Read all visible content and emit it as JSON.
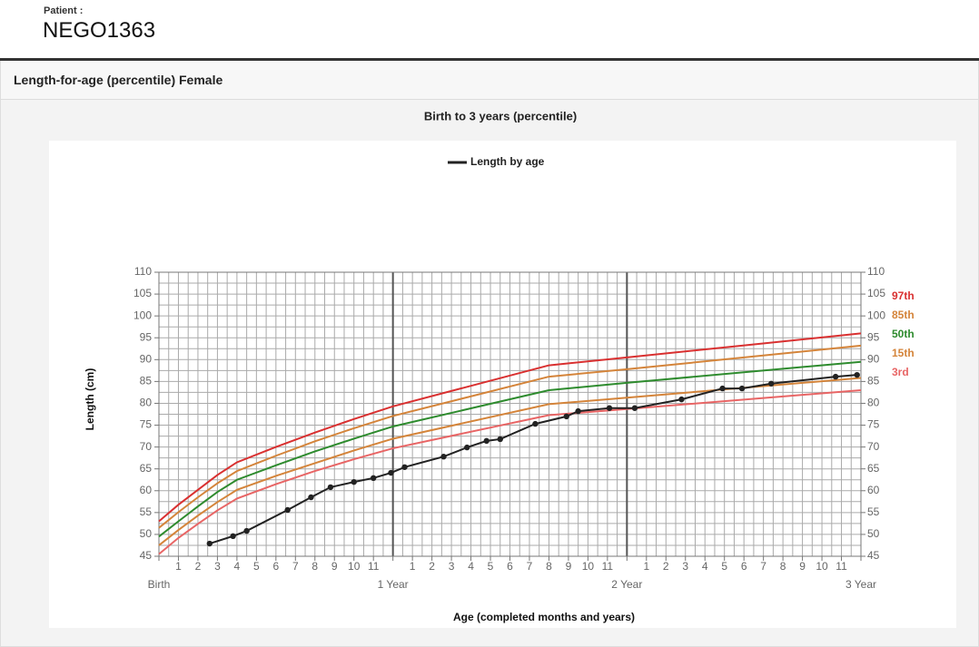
{
  "patient": {
    "label": "Patient :",
    "id": "NEGO1363"
  },
  "panel": {
    "title": "Length-for-age (percentile) Female"
  },
  "chart_data": {
    "type": "line",
    "title": "Birth to 3 years (percentile)",
    "x_label": "Age (completed months and years)",
    "y_label": "Length (cm)",
    "xlim": [
      0,
      36
    ],
    "ylim": [
      45,
      110
    ],
    "yticks": [
      45,
      50,
      55,
      60,
      65,
      70,
      75,
      80,
      85,
      90,
      95,
      100,
      105,
      110
    ],
    "xticks": [
      1,
      2,
      3,
      4,
      5,
      6,
      7,
      8,
      9,
      10,
      11,
      {
        "value": 13,
        "label": "1"
      },
      {
        "value": 14,
        "label": "2"
      },
      {
        "value": 15,
        "label": "3"
      },
      {
        "value": 16,
        "label": "4"
      },
      {
        "value": 17,
        "label": "5"
      },
      {
        "value": 18,
        "label": "6"
      },
      {
        "value": 19,
        "label": "7"
      },
      {
        "value": 20,
        "label": "8"
      },
      {
        "value": 21,
        "label": "9"
      },
      {
        "value": 22,
        "label": "10"
      },
      {
        "value": 23,
        "label": "11"
      },
      {
        "value": 25,
        "label": "1"
      },
      {
        "value": 26,
        "label": "2"
      },
      {
        "value": 27,
        "label": "3"
      },
      {
        "value": 28,
        "label": "4"
      },
      {
        "value": 29,
        "label": "5"
      },
      {
        "value": 30,
        "label": "6"
      },
      {
        "value": 31,
        "label": "7"
      },
      {
        "value": 32,
        "label": "8"
      },
      {
        "value": 33,
        "label": "9"
      },
      {
        "value": 34,
        "label": "10"
      },
      {
        "value": 35,
        "label": "11"
      }
    ],
    "year_ticks": [
      {
        "value": 0,
        "label": "Birth"
      },
      {
        "value": 12,
        "label": "1 Year"
      },
      {
        "value": 24,
        "label": "2 Year"
      },
      {
        "value": 36,
        "label": "3 Year"
      }
    ],
    "grid": true,
    "series": [
      {
        "name": "97th",
        "color": "#d93030",
        "x": [
          0,
          1,
          2,
          3,
          4,
          6,
          8,
          10,
          12,
          20,
          24,
          36
        ],
        "values": [
          53,
          56.8,
          60.2,
          63.6,
          66.5,
          70,
          73.3,
          76.4,
          79.3,
          88.7,
          90.5,
          96
        ]
      },
      {
        "name": "85th",
        "color": "#d4843a",
        "x": [
          0,
          1,
          2,
          3,
          4,
          6,
          8,
          10,
          12,
          20,
          24,
          36
        ],
        "values": [
          51.5,
          55.1,
          58.5,
          61.7,
          64.5,
          68,
          71.3,
          74.3,
          77.1,
          86.1,
          87.8,
          93.2
        ]
      },
      {
        "name": "50th",
        "color": "#2e8b2e",
        "x": [
          0,
          1,
          2,
          3,
          4,
          6,
          8,
          10,
          12,
          20,
          24,
          36
        ],
        "values": [
          49.5,
          53,
          56.4,
          59.7,
          62.5,
          65.8,
          69,
          71.9,
          74.7,
          83,
          84.7,
          89.5
        ]
      },
      {
        "name": "15th",
        "color": "#d4843a",
        "x": [
          0,
          1,
          2,
          3,
          4,
          6,
          8,
          10,
          12,
          20,
          24,
          36
        ],
        "values": [
          47.5,
          51,
          54.3,
          57.4,
          60.2,
          63.4,
          66.3,
          69.2,
          71.9,
          79.8,
          81.3,
          85.8
        ]
      },
      {
        "name": "3rd",
        "color": "#e86565",
        "x": [
          0,
          1,
          2,
          3,
          4,
          6,
          8,
          10,
          12,
          20,
          24,
          36
        ],
        "values": [
          45.5,
          49.2,
          52.4,
          55.5,
          58.2,
          61.5,
          64.5,
          67.2,
          69.7,
          77.3,
          78.7,
          83
        ]
      },
      {
        "name": "Length by age",
        "color": "#222222",
        "markers": true,
        "x": [
          2.6,
          3.8,
          4.5,
          6.6,
          7.8,
          8.8,
          10.0,
          11.0,
          11.9,
          12.6,
          14.6,
          15.8,
          16.8,
          17.5,
          19.3,
          20.9,
          21.5,
          23.1,
          24.4,
          26.8,
          28.9,
          29.9,
          31.4,
          34.7,
          35.8
        ],
        "values": [
          47.9,
          49.6,
          50.8,
          55.6,
          58.5,
          60.8,
          62.0,
          62.9,
          64.1,
          65.4,
          67.8,
          69.9,
          71.4,
          71.8,
          75.3,
          77.0,
          78.2,
          78.9,
          78.9,
          80.9,
          83.4,
          83.4,
          84.5,
          86.1,
          86.5
        ]
      }
    ]
  }
}
